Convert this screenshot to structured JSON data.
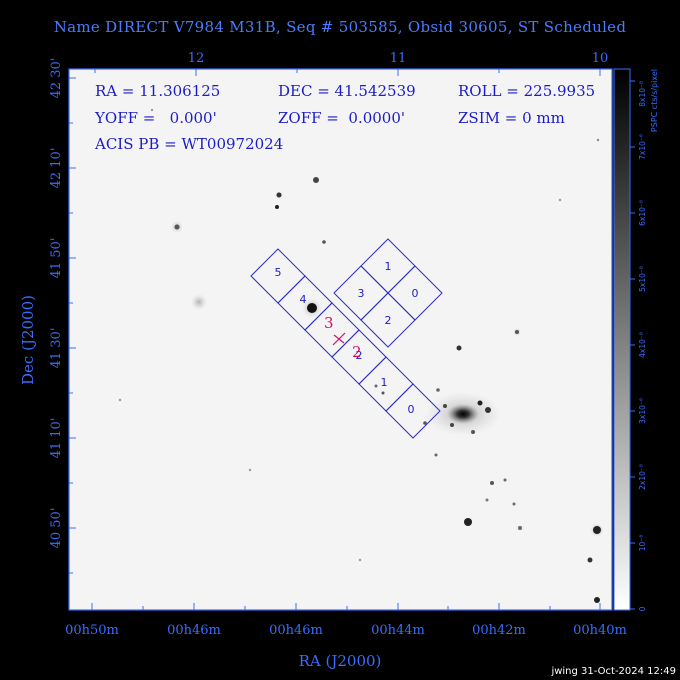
{
  "title": "Name DIRECT V7984 M31B, Seq # 503585, Obsid 30605, ST Scheduled",
  "info": {
    "ra": "RA = 11.306125",
    "dec": "DEC = 41.542539",
    "roll": "ROLL = 225.9935",
    "yoff": "YOFF =   0.000'",
    "zoff": "ZOFF =  0.0000'",
    "zsim": "ZSIM = 0 mm",
    "acis": "ACIS PB = WT00972024"
  },
  "axes": {
    "xlabel": "RA (J2000)",
    "ylabel": "Dec (J2000)",
    "bottom_ticks": [
      "00h50m",
      "00h46m",
      "00h46m",
      "00h44m",
      "00h42m",
      "00h40m"
    ],
    "top_ticks": [
      "12",
      "11",
      "10"
    ],
    "left_ticks": [
      "42 30'",
      "42 10'",
      "41 50'",
      "41 30'",
      "41 10'",
      "40 50'"
    ]
  },
  "colorbar": {
    "label": "PSPC cts/s/pixel",
    "ticks": [
      "0",
      "10⁻⁸",
      "2x10⁻⁸",
      "3x10⁻⁸",
      "4x10⁻⁸",
      "5x10⁻⁸",
      "6x10⁻⁸",
      "7x10⁻⁸",
      "8x10⁻⁸"
    ]
  },
  "chips": {
    "square": [
      "1",
      "0",
      "2",
      "3"
    ],
    "strip": [
      "5",
      "4",
      "2",
      "1",
      "0"
    ],
    "marker_3": "3",
    "marker_2": "2"
  },
  "colors": {
    "accent": "#3a6cff",
    "chip_outline": "#2c2cc8",
    "marker": "#d0106a"
  },
  "footer": "jwing 31-Oct-2024 12:49"
}
